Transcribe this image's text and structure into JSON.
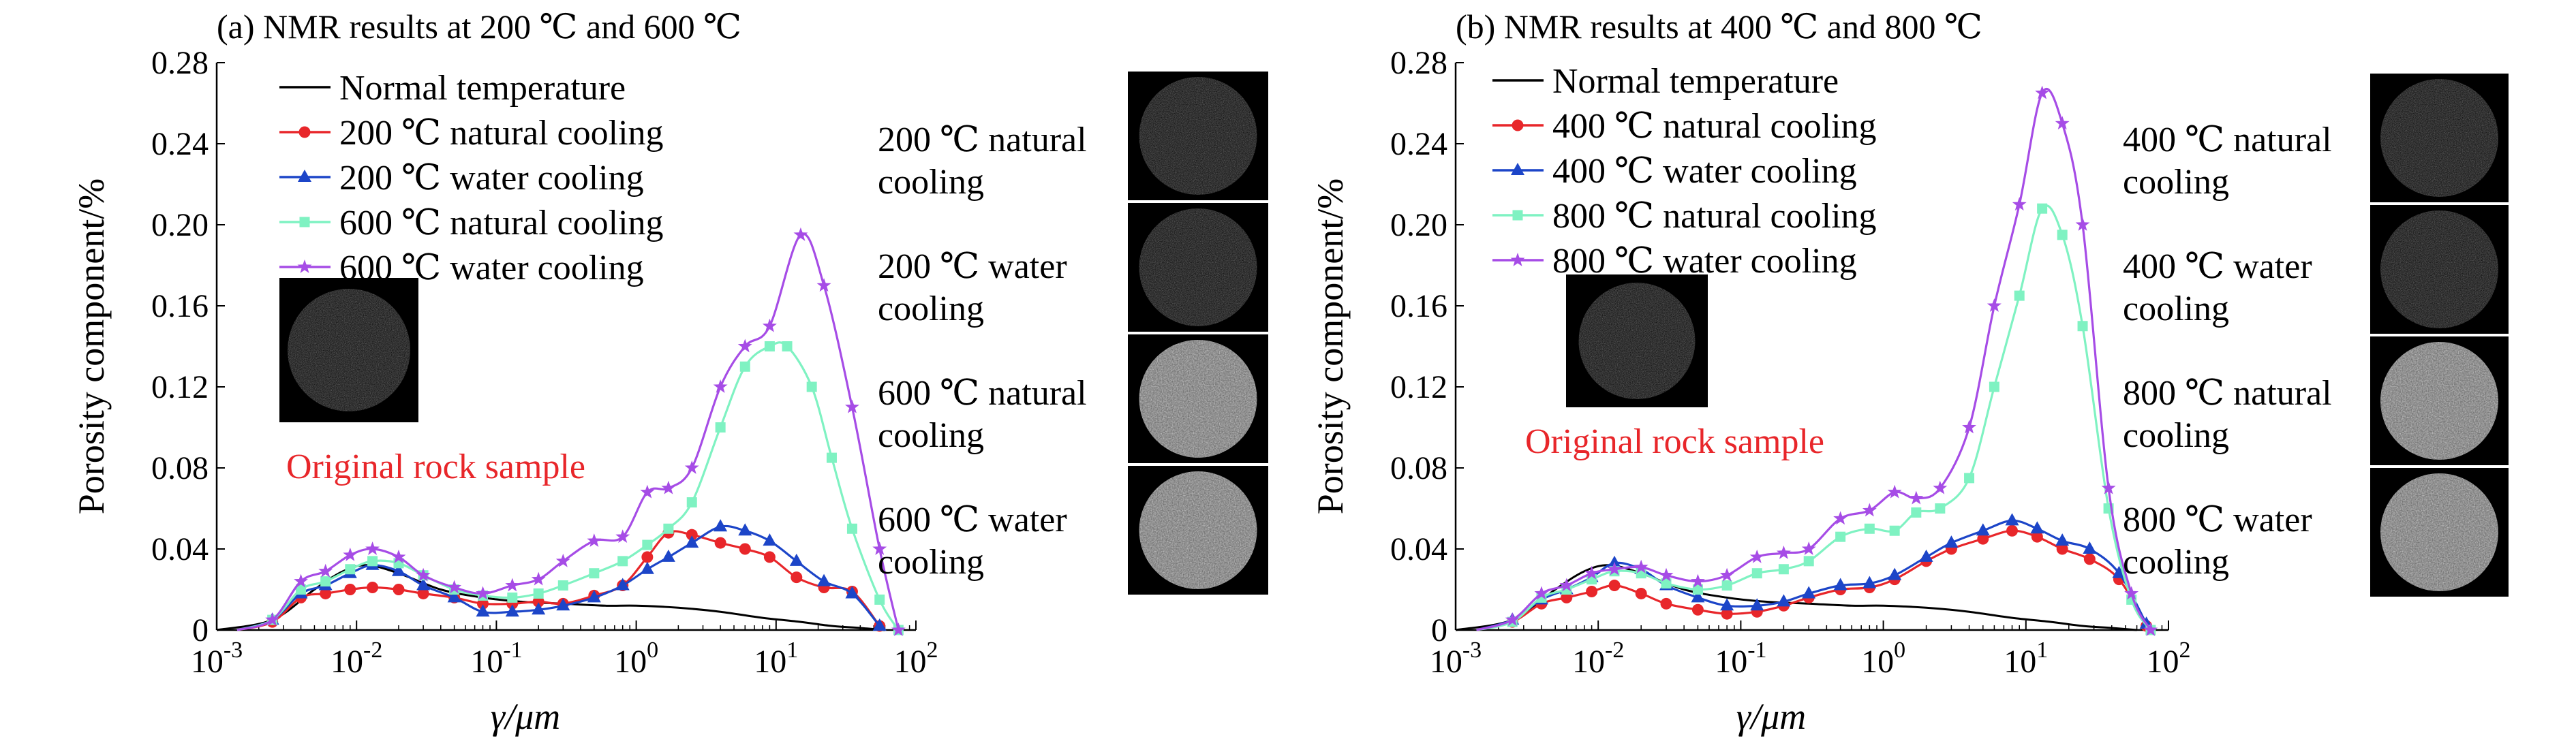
{
  "colors": {
    "normal": "#000000",
    "nat_low": "#e8262a",
    "water_low": "#1c45c8",
    "nat_high": "#7ff2c2",
    "water_high": "#a64ce6",
    "annotation": "#e8262a"
  },
  "chart_data": [
    {
      "type": "line",
      "title": "(a) NMR results at 200 ℃ and 600 ℃",
      "xlabel": "γ/μm",
      "ylabel": "Porosity component/%",
      "xscale": "log",
      "xlim": [
        0.001,
        100
      ],
      "ylim": [
        0,
        0.28
      ],
      "yticks": [
        "0",
        "0.04",
        "0.08",
        "0.12",
        "0.16",
        "0.20",
        "0.24",
        "0.28"
      ],
      "xticks": [
        {
          "base": "10",
          "exp": "-3"
        },
        {
          "base": "10",
          "exp": "-2"
        },
        {
          "base": "10",
          "exp": "-1"
        },
        {
          "base": "10",
          "exp": "0"
        },
        {
          "base": "10",
          "exp": "1"
        },
        {
          "base": "10",
          "exp": "2"
        }
      ],
      "legend_position": "top-left",
      "annotation": "Original rock sample",
      "image_captions": [
        [
          "200 ℃ natural",
          "cooling"
        ],
        [
          "200 ℃ water",
          "cooling"
        ],
        [
          "600 ℃ natural",
          "cooling"
        ],
        [
          "600 ℃ water",
          "cooling"
        ]
      ],
      "series": [
        {
          "name": "Normal temperature",
          "color_key": "normal",
          "marker": "none",
          "x": [
            0.001,
            0.0025,
            0.005,
            0.008,
            0.012,
            0.02,
            0.04,
            0.08,
            0.15,
            0.3,
            0.6,
            1.0,
            2.0,
            4.0,
            8.0,
            15.0,
            25.0,
            40.0,
            60.0
          ],
          "y": [
            0,
            0.005,
            0.02,
            0.029,
            0.032,
            0.028,
            0.02,
            0.016,
            0.014,
            0.013,
            0.012,
            0.012,
            0.011,
            0.009,
            0.006,
            0.004,
            0.002,
            0.001,
            0
          ]
        },
        {
          "name": "200 ℃ natural cooling",
          "color_key": "nat_low",
          "marker": "circle",
          "x": [
            0.0014,
            0.0025,
            0.004,
            0.006,
            0.009,
            0.013,
            0.02,
            0.03,
            0.05,
            0.08,
            0.13,
            0.2,
            0.3,
            0.5,
            0.8,
            1.2,
            1.7,
            2.5,
            4.0,
            6.0,
            9.0,
            14.0,
            22.0,
            35.0,
            55.0
          ],
          "y": [
            0,
            0.004,
            0.016,
            0.018,
            0.02,
            0.021,
            0.02,
            0.018,
            0.016,
            0.013,
            0.013,
            0.014,
            0.013,
            0.017,
            0.022,
            0.036,
            0.048,
            0.047,
            0.043,
            0.04,
            0.036,
            0.026,
            0.021,
            0.019,
            0.002
          ]
        },
        {
          "name": "200 ℃ water cooling",
          "color_key": "water_low",
          "marker": "triangle",
          "x": [
            0.0014,
            0.0025,
            0.004,
            0.006,
            0.009,
            0.013,
            0.02,
            0.03,
            0.05,
            0.08,
            0.13,
            0.2,
            0.3,
            0.5,
            0.8,
            1.2,
            1.7,
            2.5,
            4.0,
            6.0,
            9.0,
            14.0,
            22.0,
            35.0,
            55.0
          ],
          "y": [
            0,
            0.005,
            0.018,
            0.022,
            0.028,
            0.032,
            0.029,
            0.022,
            0.016,
            0.009,
            0.009,
            0.01,
            0.012,
            0.016,
            0.022,
            0.03,
            0.036,
            0.043,
            0.051,
            0.049,
            0.044,
            0.034,
            0.024,
            0.018,
            0.002
          ]
        },
        {
          "name": "600 ℃ natural cooling",
          "color_key": "nat_high",
          "marker": "square",
          "x": [
            0.0014,
            0.0025,
            0.004,
            0.006,
            0.009,
            0.013,
            0.02,
            0.03,
            0.05,
            0.08,
            0.13,
            0.2,
            0.3,
            0.5,
            0.8,
            1.2,
            1.7,
            2.5,
            4.0,
            6.0,
            9.0,
            12.0,
            18.0,
            25.0,
            35.0,
            55.0,
            75.0
          ],
          "y": [
            0,
            0.005,
            0.02,
            0.024,
            0.03,
            0.034,
            0.033,
            0.027,
            0.02,
            0.017,
            0.016,
            0.018,
            0.022,
            0.028,
            0.034,
            0.042,
            0.05,
            0.063,
            0.1,
            0.13,
            0.14,
            0.14,
            0.12,
            0.085,
            0.05,
            0.015,
            0
          ]
        },
        {
          "name": "600 ℃ water cooling",
          "color_key": "water_high",
          "marker": "star",
          "x": [
            0.0014,
            0.0025,
            0.004,
            0.006,
            0.009,
            0.013,
            0.02,
            0.03,
            0.05,
            0.08,
            0.13,
            0.2,
            0.3,
            0.5,
            0.8,
            1.2,
            1.7,
            2.5,
            4.0,
            6.0,
            9.0,
            15.0,
            22.0,
            35.0,
            55.0,
            75.0
          ],
          "y": [
            0,
            0.005,
            0.024,
            0.029,
            0.037,
            0.04,
            0.036,
            0.027,
            0.021,
            0.018,
            0.022,
            0.025,
            0.034,
            0.044,
            0.046,
            0.068,
            0.07,
            0.08,
            0.12,
            0.14,
            0.15,
            0.195,
            0.17,
            0.11,
            0.04,
            0
          ]
        }
      ]
    },
    {
      "type": "line",
      "title": "(b) NMR results at  400 ℃ and 800 ℃",
      "xlabel": "γ/μm",
      "ylabel": "Porosity component/%",
      "xscale": "log",
      "xlim": [
        0.001,
        100
      ],
      "ylim": [
        0,
        0.28
      ],
      "yticks": [
        "0",
        "0.04",
        "0.08",
        "0.12",
        "0.16",
        "0.20",
        "0.24",
        "0.28"
      ],
      "xticks": [
        {
          "base": "10",
          "exp": "-3"
        },
        {
          "base": "10",
          "exp": "-2"
        },
        {
          "base": "10",
          "exp": "-1"
        },
        {
          "base": "10",
          "exp": "0"
        },
        {
          "base": "10",
          "exp": "1"
        },
        {
          "base": "10",
          "exp": "2"
        }
      ],
      "legend_position": "top-left",
      "annotation": "Original rock sample",
      "image_captions": [
        [
          "400 ℃ natural",
          "cooling"
        ],
        [
          "400 ℃ water",
          "cooling"
        ],
        [
          "800 ℃ natural",
          "cooling"
        ],
        [
          "800 ℃ water",
          "cooling"
        ]
      ],
      "series": [
        {
          "name": "Normal temperature",
          "color_key": "normal",
          "marker": "none",
          "x": [
            0.001,
            0.0025,
            0.005,
            0.008,
            0.012,
            0.02,
            0.04,
            0.08,
            0.15,
            0.3,
            0.6,
            1.0,
            2.0,
            4.0,
            8.0,
            15.0,
            25.0,
            40.0,
            60.0
          ],
          "y": [
            0,
            0.005,
            0.02,
            0.029,
            0.032,
            0.028,
            0.02,
            0.016,
            0.014,
            0.013,
            0.012,
            0.012,
            0.011,
            0.009,
            0.006,
            0.004,
            0.002,
            0.001,
            0
          ]
        },
        {
          "name": "400 ℃ natural cooling",
          "color_key": "nat_low",
          "marker": "circle",
          "x": [
            0.0014,
            0.0025,
            0.004,
            0.006,
            0.009,
            0.013,
            0.02,
            0.03,
            0.05,
            0.08,
            0.13,
            0.2,
            0.3,
            0.5,
            0.8,
            1.2,
            2.0,
            3.0,
            5.0,
            8.0,
            12.0,
            18.0,
            28.0,
            45.0,
            70.0
          ],
          "y": [
            0,
            0.004,
            0.013,
            0.016,
            0.019,
            0.022,
            0.018,
            0.013,
            0.01,
            0.008,
            0.009,
            0.012,
            0.016,
            0.02,
            0.021,
            0.025,
            0.034,
            0.04,
            0.045,
            0.049,
            0.046,
            0.04,
            0.035,
            0.025,
            0.002
          ]
        },
        {
          "name": "400 ℃ water cooling",
          "color_key": "water_low",
          "marker": "triangle",
          "x": [
            0.0014,
            0.0025,
            0.004,
            0.006,
            0.009,
            0.013,
            0.02,
            0.03,
            0.05,
            0.08,
            0.13,
            0.2,
            0.3,
            0.5,
            0.8,
            1.2,
            2.0,
            3.0,
            5.0,
            8.0,
            12.0,
            18.0,
            28.0,
            45.0,
            70.0
          ],
          "y": [
            0,
            0.005,
            0.015,
            0.02,
            0.026,
            0.033,
            0.03,
            0.022,
            0.016,
            0.012,
            0.012,
            0.014,
            0.018,
            0.022,
            0.023,
            0.027,
            0.036,
            0.043,
            0.049,
            0.054,
            0.05,
            0.044,
            0.04,
            0.028,
            0.003
          ]
        },
        {
          "name": "800 ℃ natural cooling",
          "color_key": "nat_high",
          "marker": "square",
          "x": [
            0.0014,
            0.0025,
            0.004,
            0.006,
            0.009,
            0.013,
            0.02,
            0.03,
            0.05,
            0.08,
            0.13,
            0.2,
            0.3,
            0.5,
            0.8,
            1.2,
            1.7,
            2.5,
            4.0,
            6.0,
            9.0,
            13.0,
            18.0,
            25.0,
            38.0,
            55.0,
            75.0
          ],
          "y": [
            0,
            0.004,
            0.016,
            0.02,
            0.025,
            0.029,
            0.028,
            0.023,
            0.02,
            0.022,
            0.028,
            0.03,
            0.034,
            0.046,
            0.05,
            0.049,
            0.058,
            0.06,
            0.075,
            0.12,
            0.165,
            0.208,
            0.195,
            0.15,
            0.06,
            0.015,
            0
          ]
        },
        {
          "name": "800 ℃ water cooling",
          "color_key": "water_high",
          "marker": "star",
          "x": [
            0.0014,
            0.0025,
            0.004,
            0.006,
            0.009,
            0.013,
            0.02,
            0.03,
            0.05,
            0.08,
            0.13,
            0.2,
            0.3,
            0.5,
            0.8,
            1.2,
            1.7,
            2.5,
            4.0,
            6.0,
            9.0,
            13.0,
            18.0,
            25.0,
            38.0,
            55.0,
            75.0
          ],
          "y": [
            0,
            0.005,
            0.018,
            0.022,
            0.028,
            0.03,
            0.031,
            0.027,
            0.024,
            0.027,
            0.036,
            0.038,
            0.04,
            0.055,
            0.059,
            0.068,
            0.065,
            0.07,
            0.1,
            0.16,
            0.21,
            0.265,
            0.25,
            0.2,
            0.07,
            0.018,
            0
          ]
        }
      ]
    }
  ]
}
